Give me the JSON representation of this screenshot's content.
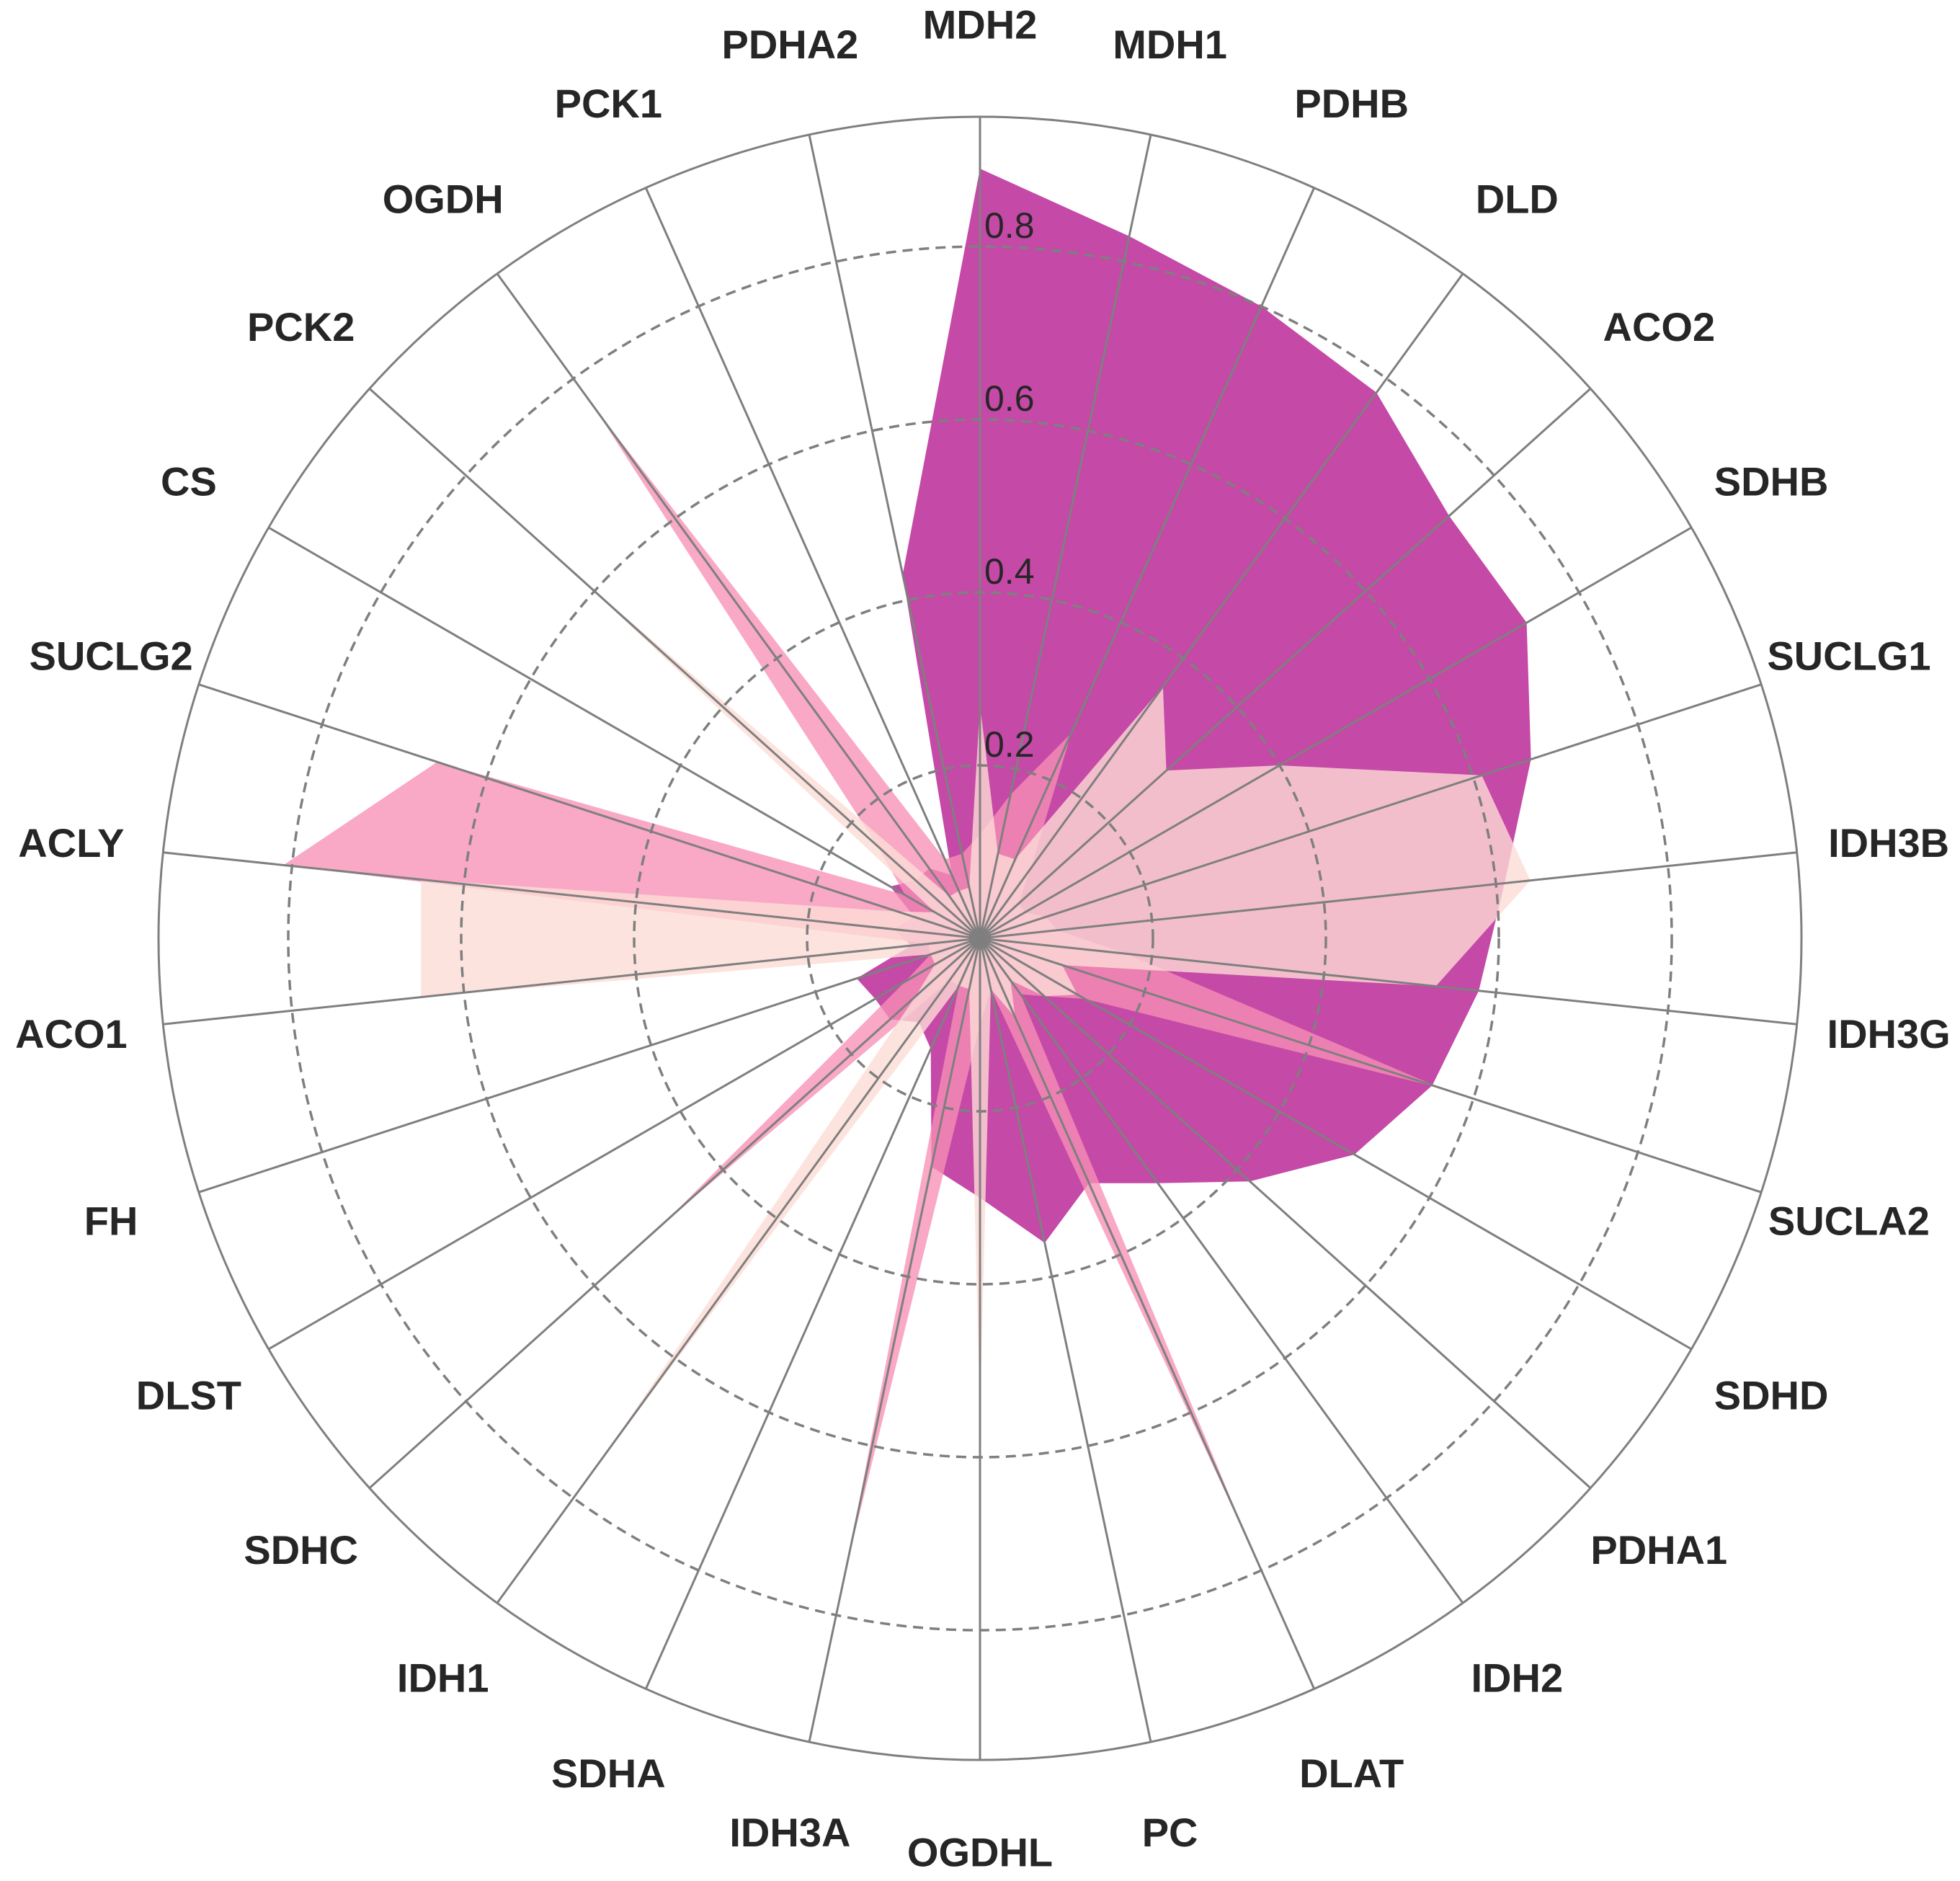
{
  "chart_data": {
    "type": "radar",
    "title": "",
    "categories": [
      "MDH2",
      "MDH1",
      "PDHB",
      "DLD",
      "ACO2",
      "SDHB",
      "SUCLG1",
      "IDH3B",
      "IDH3G",
      "SUCLA2",
      "SDHD",
      "PDHA1",
      "IDH2",
      "DLAT",
      "PC",
      "OGDHL",
      "IDH3A",
      "SDHA",
      "IDH1",
      "SDHC",
      "DLST",
      "FH",
      "ACO1",
      "ACLY",
      "SUCLG2",
      "CS",
      "PCK2",
      "OGDH",
      "PCK1",
      "PDHA2"
    ],
    "rlim": [
      0,
      0.95
    ],
    "rticks": [
      0.2,
      0.4,
      0.6,
      0.8
    ],
    "rtick_labels": [
      "0.2",
      "0.4",
      "0.6",
      "0.8"
    ],
    "grid": true,
    "series": [
      {
        "color": "#c0399f",
        "opacity": 0.92,
        "values": [
          0.89,
          0.83,
          0.8,
          0.78,
          0.73,
          0.73,
          0.67,
          0.61,
          0.58,
          0.55,
          0.5,
          0.42,
          0.35,
          0.31,
          0.36,
          0.3,
          0.27,
          0.14,
          0.12,
          0.14,
          0.14,
          0.15,
          0.08,
          0.1,
          0.08,
          0.12,
          0.1,
          0.1,
          0.08,
          0.43
        ]
      },
      {
        "color": "#f78fb5",
        "opacity": 0.78,
        "values": [
          0.12,
          0.17,
          0.26,
          0.1,
          0.06,
          0.06,
          0.08,
          0.09,
          0.17,
          0.56,
          0.14,
          0.1,
          0.08,
          0.77,
          0.06,
          0.1,
          0.74,
          0.06,
          0.06,
          0.49,
          0.1,
          0.06,
          0.06,
          0.81,
          0.66,
          0.1,
          0.16,
          0.76,
          0.1,
          0.1
        ]
      },
      {
        "color": "#fcdcd6",
        "opacity": 0.8,
        "values": [
          0.27,
          0.1,
          0.1,
          0.36,
          0.29,
          0.4,
          0.61,
          0.64,
          0.53,
          0.1,
          0.13,
          0.1,
          0.06,
          0.1,
          0.06,
          0.55,
          0.06,
          0.06,
          0.74,
          0.1,
          0.06,
          0.06,
          0.65,
          0.65,
          0.1,
          0.06,
          0.63,
          0.06,
          0.06,
          0.06
        ]
      }
    ]
  }
}
